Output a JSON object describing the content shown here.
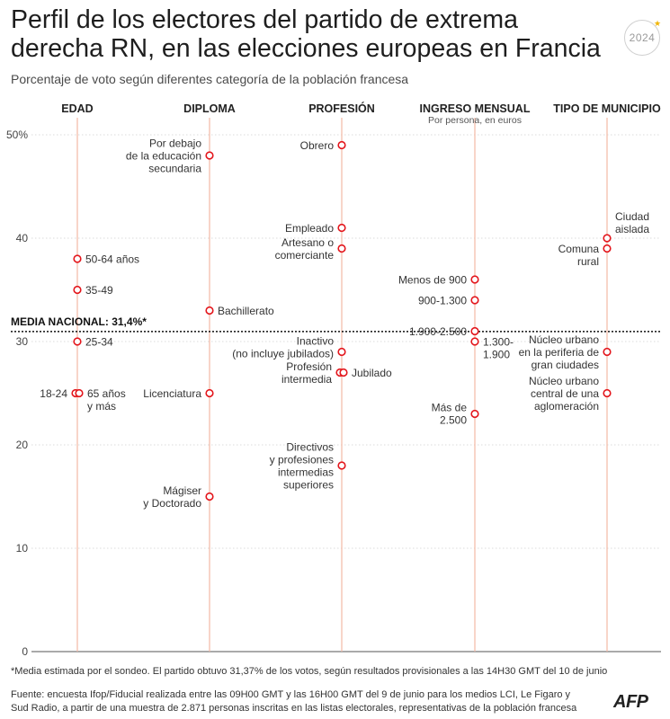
{
  "title": "Perfil de los electores del partido de extrema derecha RN, en las elecciones europeas en Francia",
  "subtitle": "Porcentaje de voto según diferentes categoría de la población francesa",
  "badge": "2024",
  "footnote": "*Media estimada por el sondeo. El partido obtuvo 31,37% de los votos, según resultados provisionales a las 14H30 GMT del 10 de junio",
  "source": "Fuente: encuesta Ifop/Fiducial realizada entre las 09H00 GMT y las 16H00 GMT del 9 de junio para los medios LCI, Le Figaro y Sud Radio, a partir de una muestra de 2.871 personas inscritas en las listas electorales, representativas de la población francesa",
  "logo": "AFP",
  "colors": {
    "marker": "#e3161c",
    "column_line": "#f4b9a5",
    "grid": "#cfcfcf",
    "text": "#2a2a2a"
  },
  "chart_data": {
    "type": "scatter",
    "ylim": [
      0,
      50
    ],
    "yticks": [
      {
        "value": 50,
        "label": "50%"
      },
      {
        "value": 40,
        "label": "40"
      },
      {
        "value": 30,
        "label": "30"
      },
      {
        "value": 20,
        "label": "20"
      },
      {
        "value": 10,
        "label": "10"
      },
      {
        "value": 0,
        "label": "0"
      }
    ],
    "reference": {
      "label": "MEDIA NACIONAL: 31,4%*",
      "value": 31.4
    },
    "categories": [
      {
        "name": "EDAD",
        "points": [
          {
            "label": "50-64 años",
            "value": 38,
            "side": "right"
          },
          {
            "label": "35-49",
            "value": 35,
            "side": "right"
          },
          {
            "label": "25-34",
            "value": 30,
            "side": "right"
          },
          {
            "label": "18-24",
            "value": 25,
            "side": "left",
            "offset": -2
          },
          {
            "label": "65 años y más",
            "value": 25,
            "side": "right",
            "offset": 2
          }
        ]
      },
      {
        "name": "DIPLOMA",
        "points": [
          {
            "label": "Por debajo de la educación secundaria",
            "value": 48,
            "side": "left"
          },
          {
            "label": "Bachillerato",
            "value": 33,
            "side": "right"
          },
          {
            "label": "Licenciatura",
            "value": 25,
            "side": "left"
          },
          {
            "label": "Mágiser y Doctorado",
            "value": 15,
            "side": "left"
          }
        ]
      },
      {
        "name": "PROFESIÓN",
        "points": [
          {
            "label": "Obrero",
            "value": 49,
            "side": "left"
          },
          {
            "label": "Empleado",
            "value": 41,
            "side": "left"
          },
          {
            "label": "Artesano o comerciante",
            "value": 39,
            "side": "left"
          },
          {
            "label": "Inactivo (no incluye jubilados)",
            "value": 29,
            "side": "left"
          },
          {
            "label": "Profesión intermedia",
            "value": 27,
            "side": "left",
            "offset": -2
          },
          {
            "label": "Jubilado",
            "value": 27,
            "side": "right",
            "offset": 2
          },
          {
            "label": "Directivos y profesiones intermedias superiores",
            "value": 18,
            "side": "left"
          }
        ]
      },
      {
        "name": "INGRESO MENSUAL",
        "subtitle": "Por persona, en euros",
        "points": [
          {
            "label": "Menos de 900",
            "value": 36,
            "side": "left"
          },
          {
            "label": "900-1.300",
            "value": 34,
            "side": "left"
          },
          {
            "label": "1.900-2.500",
            "value": 31,
            "side": "left"
          },
          {
            "label": "1.300-1.900",
            "value": 30,
            "side": "right"
          },
          {
            "label": "Más de 2.500",
            "value": 23,
            "side": "left"
          }
        ]
      },
      {
        "name": "TIPO DE MUNICIPIO",
        "points": [
          {
            "label": "Ciudad aislada",
            "value": 40,
            "side": "right"
          },
          {
            "label": "Comuna rural",
            "value": 39,
            "side": "left"
          },
          {
            "label": "Núcleo urbano en la periferia de gran ciudades",
            "value": 29,
            "side": "left"
          },
          {
            "label": "Núcleo urbano central de una aglomeración",
            "value": 25,
            "side": "left"
          }
        ]
      }
    ]
  }
}
